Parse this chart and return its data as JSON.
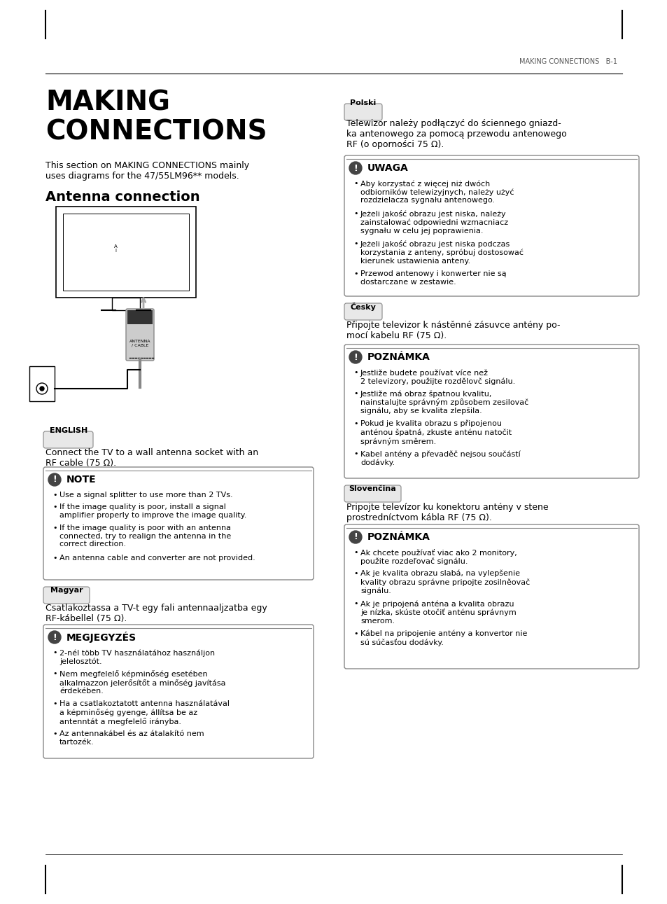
{
  "bg_color": "#ffffff",
  "page_header": "MAKING CONNECTIONS   B-1",
  "main_title_line1": "MAKING",
  "main_title_line2": "CONNECTIONS",
  "subtitle": "This section on MAKING CONNECTIONS mainly\nuses diagrams for the 47/55LM96** models.",
  "section_title": "Antenna connection",
  "english_label": "ENGLISH",
  "english_text": "Connect the TV to a wall antenna socket with an\nRF cable (75 Ω).",
  "note_title": "NOTE",
  "note_bullets": [
    "Use a signal splitter to use more than 2 TVs.",
    "If the image quality is poor, install a signal\namplifier properly to improve the image quality.",
    "If the image quality is poor with an antenna\nconnected, try to realign the antenna in the\ncorrect direction.",
    "An antenna cable and converter are not provided."
  ],
  "magyar_label": "Magyar",
  "magyar_text": "Csatlakoztassa a TV-t egy fali antennaaljzatba egy\nRF-kábellel (75 Ω).",
  "megjegyzes_title": "MEGJEGYZÉS",
  "megjegyzes_bullets": [
    "2-nél több TV használatához használjon\njelelosztót.",
    "Nem megfelelő képminőség esetében\nalkalmazzon jelerősítőt a minőség javítása\nérdekében.",
    "Ha a csatlakoztatott antenna használatával\na képminőség gyenge, állítsa be az\nantenntát a megfelelő irányba.",
    "Az antennakábel és az átalakító nem\ntartozék."
  ],
  "polski_label": "Polski",
  "polski_text": "Telewizor należy podłączyć do ściennego gniazd-\nka antenowego za pomocą przewodu antenowego\nRF (o oporności 75 Ω).",
  "uwaga_title": "UWAGA",
  "uwaga_bullets": [
    "Aby korzystać z więcej niż dwóch\nodbiorników telewizyjnych, należy użyć\nrozdzielacza sygnału antenowego.",
    "Jeżeli jakość obrazu jest niska, należy\nzainstalować odpowiedni wzmacniacz\nsygnału w celu jej poprawienia.",
    "Jeżeli jakość obrazu jest niska podczas\nkorzystania z anteny, spróbuj dostosować\nkierunek ustawienia anteny.",
    "Przewod antenowy i konwerter nie są\ndostarczane w zestawie."
  ],
  "cesky_label": "Česky",
  "cesky_text": "Připojte televizor k nástěnné zásuvce antény po-\nmocí kabelu RF (75 Ω).",
  "poznamka_title": "POZNÁMKA",
  "poznamka_bullets": [
    "Jestliže budete používat více než\n2 televizory, použijte rozdělovč signálu.",
    "Jestliže má obraz špatnou kvalitu,\nnainstalujte správným způsobem zesilovač\nsignálu, aby se kvalita zlepšila.",
    "Pokud je kvalita obrazu s připojenou\nanténou špatná, zkuste anténu natočit\nsprávným směrem.",
    "Kabel antény a převaděč nejsou součástí\ndodávky."
  ],
  "slovencina_label": "Slovenčina",
  "slovencina_text": "Pripojte televízor ku konektoru antény v stene\nprostredníctvom kábla RF (75 Ω).",
  "poznamka2_title": "POZNÁMKA",
  "poznamka2_bullets": [
    "Ak chcete používať viac ako 2 monitory,\npoužite rozdeľovač signálu.",
    "Ak je kvalita obrazu slabá, na vylepšenie\nkvality obrazu správne pripojte zosilněovač\nsignálu.",
    "Ak je pripojená anténa a kvalita obrazu\nje nízka, skúste otočiť anténu správnym\nsmerom.",
    "Kábel na pripojenie antény a konvertor nie\nsú súčasťou dodávky."
  ]
}
